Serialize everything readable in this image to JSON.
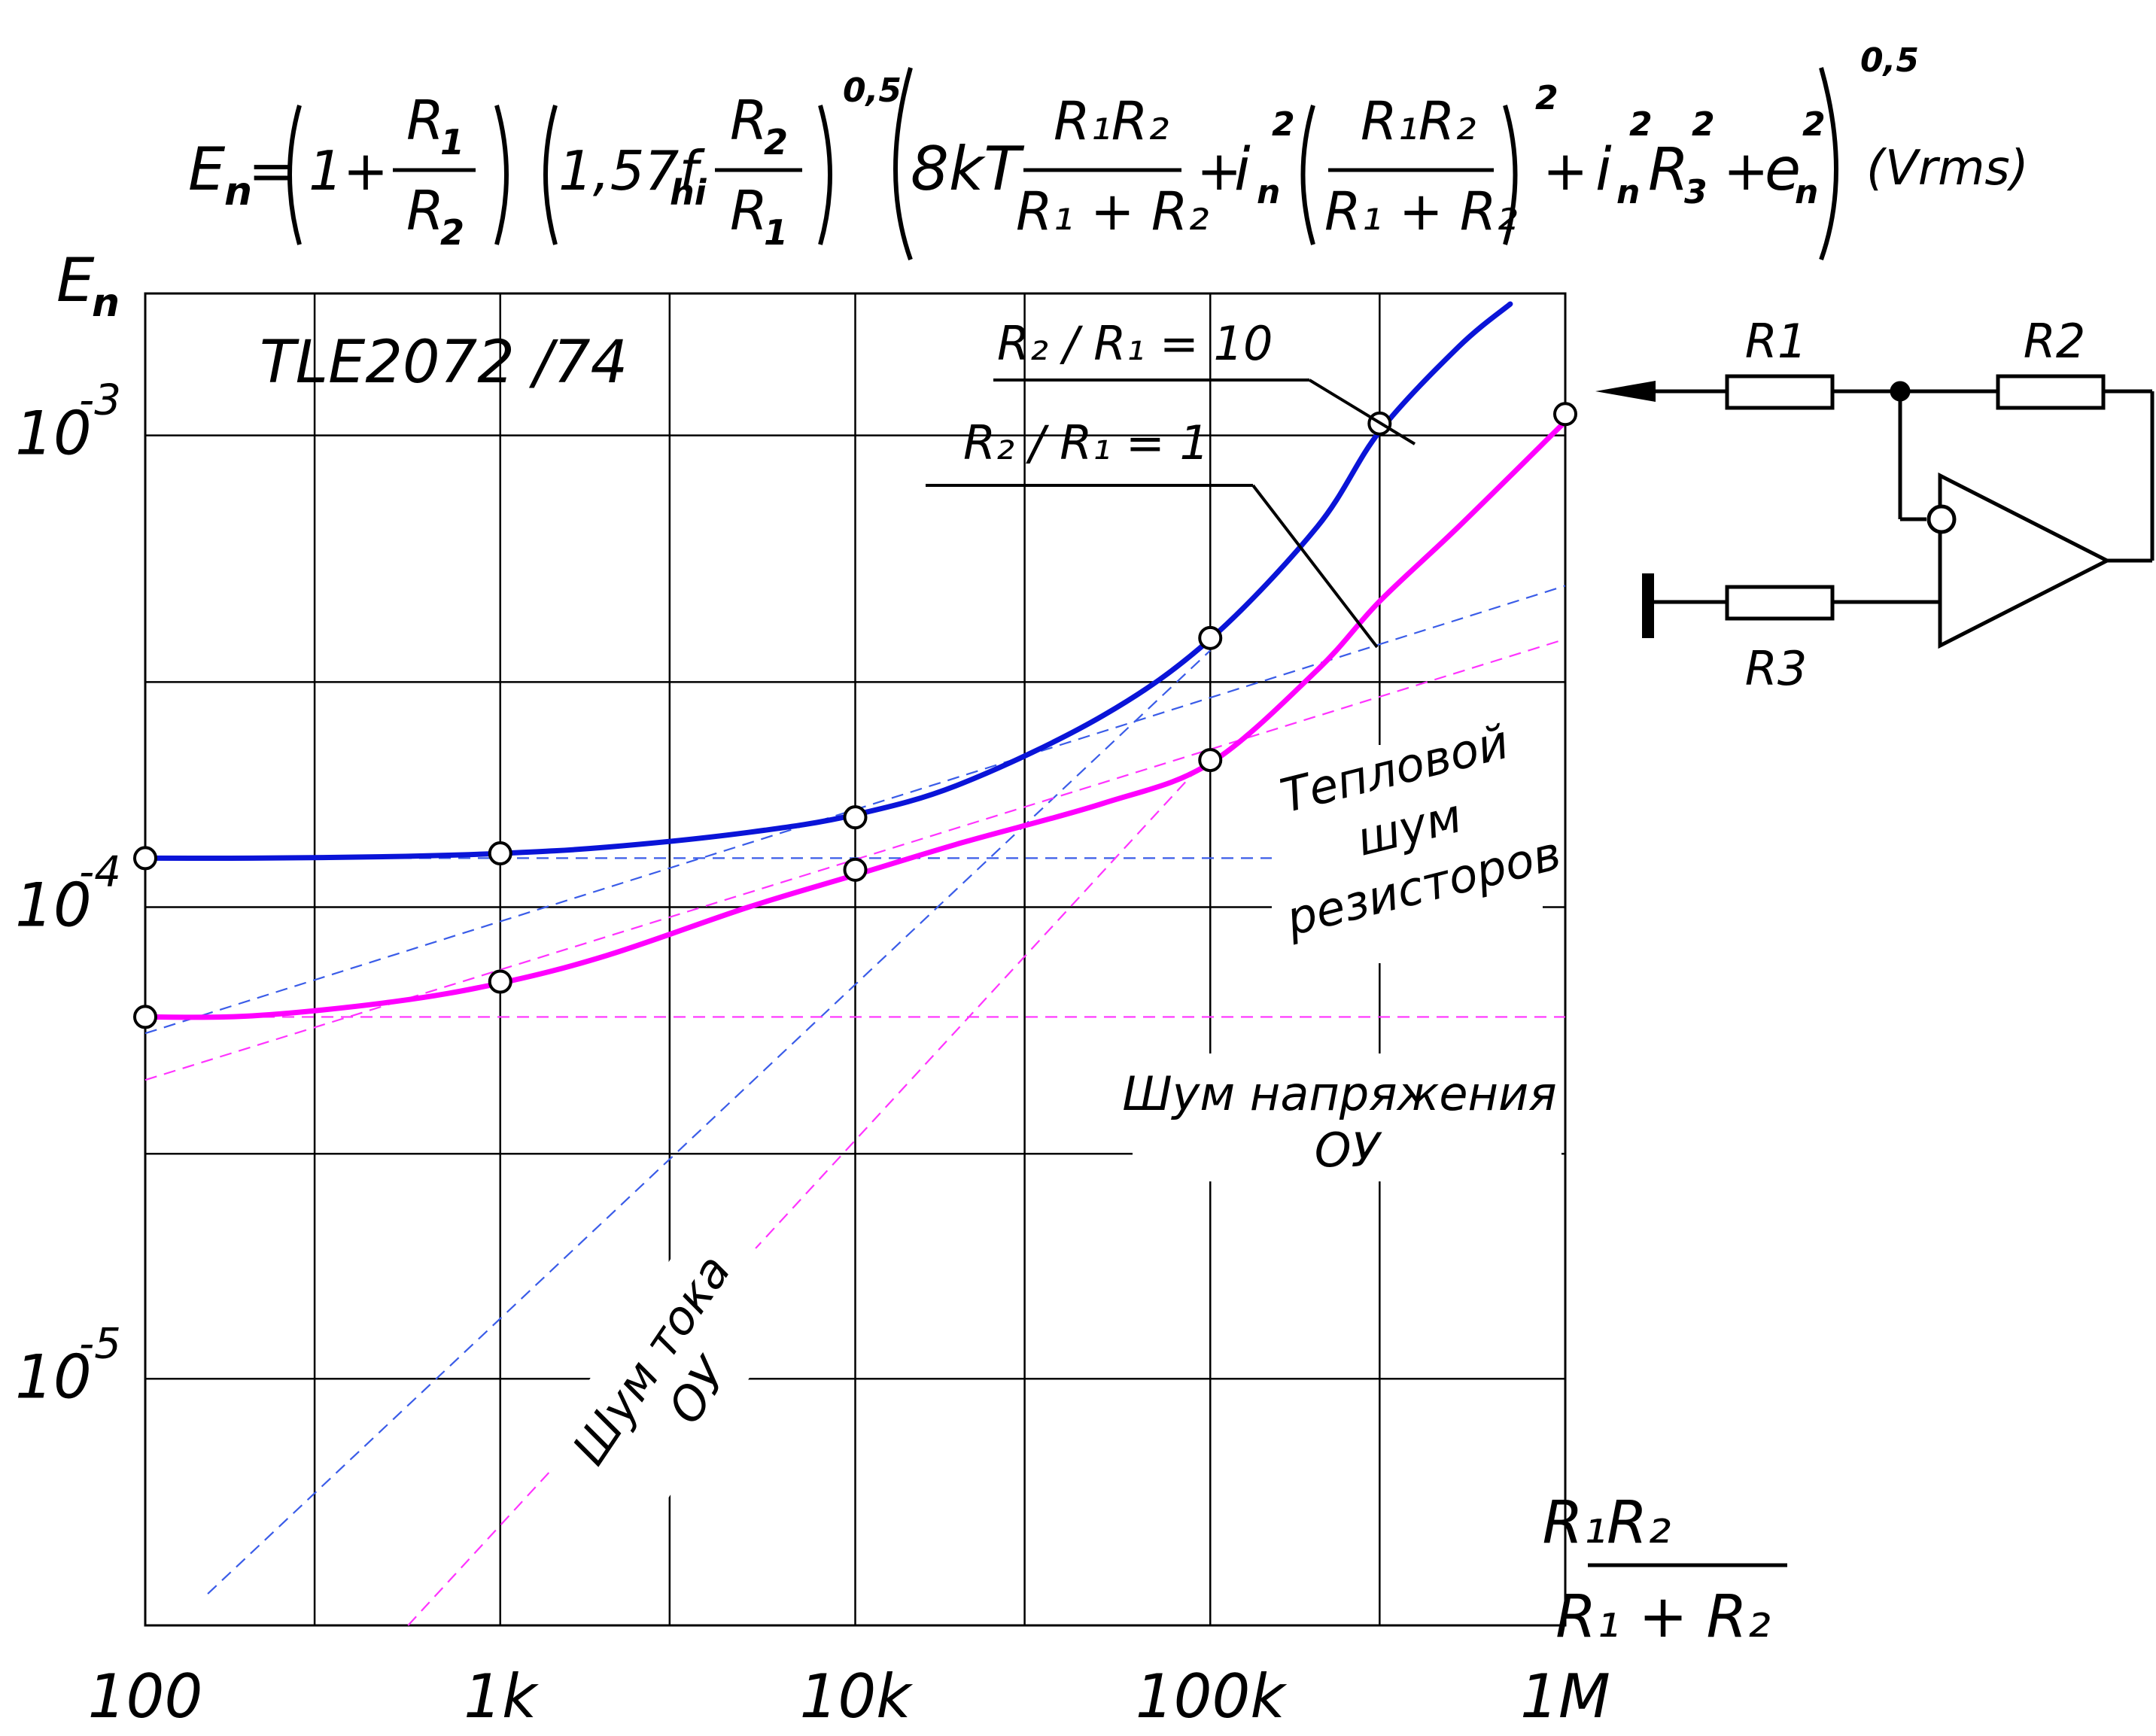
{
  "formula": {
    "lhs": "E",
    "lhs_sub": "n",
    "eq": "=",
    "t1_one": "1+",
    "t1_num": "R",
    "t1_num_sub": "1",
    "t1_den": "R",
    "t1_den_sub": "2",
    "t2_coef": "1,57f",
    "t2_coef_sub": "hi",
    "t2_num": "R",
    "t2_num_sub": "2",
    "t2_den": "R",
    "t2_den_sub": "1",
    "exp1": "0,5",
    "t3_8kT": "8kT",
    "t3_num": "R₁R₂",
    "t3_den": "R₁ + R₂",
    "plus1": "+",
    "i_n": "i",
    "i_n_sub": "n",
    "sq": "2",
    "plus2": "+",
    "i_n2": "i",
    "R3": "R",
    "R3_sub": "3",
    "plus3": "+",
    "e_n": "e",
    "exp2": "0,5",
    "units": "(Vrms)"
  },
  "schematic": {
    "r1": "R1",
    "r2": "R2",
    "r3": "R3"
  },
  "chart_data": {
    "type": "line",
    "title": "TLE2072 /74",
    "ylabel": "E",
    "ylabel_sub": "n",
    "xlabel_num": "R₁R₂",
    "xlabel_den": "R₁ + R₂",
    "x_scale": "log",
    "y_scale": "log",
    "xlim": [
      100,
      1000000
    ],
    "ylim": [
      3e-06,
      0.002
    ],
    "grid": true,
    "x_ticks": [
      {
        "value": 100,
        "label": "100"
      },
      {
        "value": 1000,
        "label": "1k"
      },
      {
        "value": 10000,
        "label": "10k"
      },
      {
        "value": 100000,
        "label": "100k"
      },
      {
        "value": 1000000,
        "label": "1M"
      }
    ],
    "y_ticks": [
      {
        "value": 0.001,
        "base": "10",
        "exp": "-3"
      },
      {
        "value": 0.0001,
        "base": "10",
        "exp": "-4"
      },
      {
        "value": 1e-05,
        "base": "10",
        "exp": "-5"
      }
    ],
    "series": [
      {
        "name": "R₂ / R₁ = 10",
        "color": "#0a14d8",
        "x": [
          100,
          200,
          500,
          1000,
          2000,
          5000,
          10000,
          20000,
          50000,
          100000,
          200000,
          300000,
          500000,
          700000
        ],
        "y": [
          0.000127,
          0.000127,
          0.000128,
          0.00013,
          0.000134,
          0.000144,
          0.000157,
          0.000183,
          0.000255,
          0.00037,
          0.00064,
          0.00102,
          0.00154,
          0.0019
        ]
      },
      {
        "name": "R₂ / R₁ = 1",
        "color": "#ff00ff",
        "x": [
          100,
          200,
          500,
          1000,
          2000,
          5000,
          10000,
          20000,
          50000,
          100000,
          200000,
          300000,
          500000,
          1000000
        ],
        "y": [
          5.85e-05,
          5.88e-05,
          6.3e-05,
          6.9e-05,
          7.9e-05,
          0.0001,
          0.000117,
          0.000137,
          0.000166,
          0.000202,
          0.000318,
          0.000445,
          0.00064,
          0.00107
        ]
      }
    ],
    "markers": [
      {
        "series": 0,
        "x": [
          100,
          1000,
          10000,
          100000,
          300000
        ],
        "y": [
          0.000127,
          0.00013,
          0.000155,
          0.000372,
          0.00106
        ]
      },
      {
        "series": 1,
        "x": [
          100,
          1000,
          10000,
          100000,
          1000000
        ],
        "y": [
          5.85e-05,
          6.95e-05,
          0.00012,
          0.000205,
          0.00111
        ]
      }
    ],
    "guides": [
      {
        "color": "#3a5ce8",
        "x": [
          100,
          200000
        ],
        "y": [
          0.000127,
          0.000127
        ]
      },
      {
        "color": "#3a5ce8",
        "x": [
          100,
          1000000
        ],
        "y": [
          5.4e-05,
          0.00048
        ]
      },
      {
        "color": "#3a5ce8",
        "x": [
          150,
          100000
        ],
        "y": [
          3.5e-06,
          0.00035
        ]
      },
      {
        "color": "#ff33ff",
        "x": [
          100,
          1000000
        ],
        "y": [
          5.85e-05,
          5.85e-05
        ]
      },
      {
        "color": "#ff33ff",
        "x": [
          100,
          1000000
        ],
        "y": [
          4.3e-05,
          0.00037
        ]
      },
      {
        "color": "#ff33ff",
        "x": [
          550,
          100000
        ],
        "y": [
          3e-06,
          0.00021
        ]
      }
    ],
    "annotations": {
      "label_r10": "R₂ / R₁ = 10",
      "label_r1": "R₂ / R₁ = 1",
      "thermal": [
        "Тепловой",
        "шум",
        "резисторов"
      ],
      "voltage": [
        "Шум напряжения",
        "ОУ"
      ],
      "current": [
        "Шум тока",
        "ОУ"
      ]
    }
  }
}
